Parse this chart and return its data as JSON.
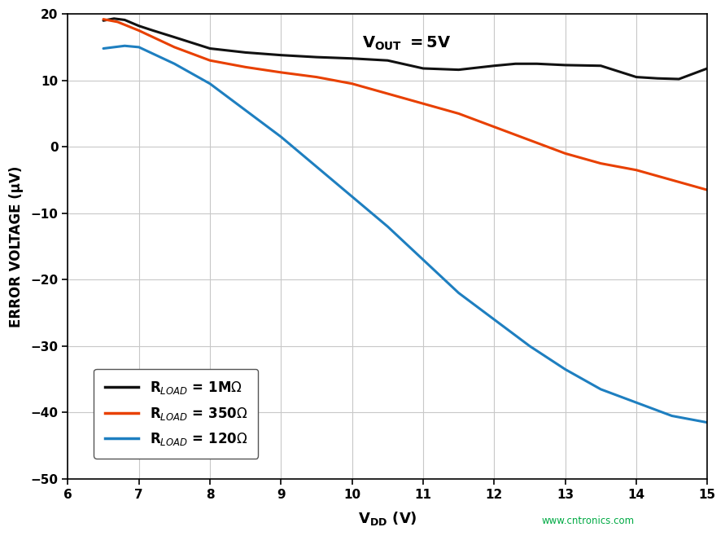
{
  "xlabel_parts": [
    "V",
    "DD",
    " ( V )"
  ],
  "ylabel": "ERROR VOLTAGE (μV)",
  "xlim": [
    6,
    15
  ],
  "ylim": [
    -50,
    20
  ],
  "xticks": [
    6,
    7,
    8,
    9,
    10,
    11,
    12,
    13,
    14,
    15
  ],
  "yticks": [
    -50,
    -40,
    -30,
    -20,
    -10,
    0,
    10,
    20
  ],
  "background_color": "#ffffff",
  "grid_color": "#c8c8c8",
  "watermark": "www.cntronics.com",
  "series": [
    {
      "label": "R$_{LOAD}$ = 1M$\\Omega$",
      "color": "#111111",
      "linewidth": 2.2,
      "x": [
        6.5,
        6.65,
        6.8,
        7.0,
        7.2,
        7.5,
        8.0,
        8.5,
        9.0,
        9.5,
        10.0,
        10.5,
        11.0,
        11.5,
        12.0,
        12.3,
        12.6,
        13.0,
        13.5,
        14.0,
        14.3,
        14.6,
        15.0
      ],
      "y": [
        19.0,
        19.3,
        19.1,
        18.2,
        17.5,
        16.5,
        14.8,
        14.2,
        13.8,
        13.5,
        13.3,
        13.0,
        11.8,
        11.6,
        12.2,
        12.5,
        12.5,
        12.3,
        12.2,
        10.5,
        10.3,
        10.2,
        11.8
      ]
    },
    {
      "label": "R$_{LOAD}$ = 350$\\Omega$",
      "color": "#e84000",
      "linewidth": 2.2,
      "x": [
        6.5,
        6.7,
        7.0,
        7.5,
        8.0,
        8.5,
        9.0,
        9.5,
        10.0,
        10.5,
        11.0,
        11.5,
        12.0,
        12.5,
        13.0,
        13.5,
        14.0,
        14.5,
        15.0
      ],
      "y": [
        19.2,
        18.8,
        17.5,
        15.0,
        13.0,
        12.0,
        11.2,
        10.5,
        9.5,
        8.0,
        6.5,
        5.0,
        3.0,
        1.0,
        -1.0,
        -2.5,
        -3.5,
        -5.0,
        -6.5
      ]
    },
    {
      "label": "R$_{LOAD}$ = 120$\\Omega$",
      "color": "#1e7fc0",
      "linewidth": 2.2,
      "x": [
        6.5,
        6.8,
        7.0,
        7.5,
        8.0,
        8.5,
        9.0,
        9.5,
        10.0,
        10.5,
        11.0,
        11.5,
        12.0,
        12.5,
        13.0,
        13.5,
        14.0,
        14.5,
        15.0
      ],
      "y": [
        14.8,
        15.2,
        15.0,
        12.5,
        9.5,
        5.5,
        1.5,
        -3.0,
        -7.5,
        -12.0,
        -17.0,
        -22.0,
        -26.0,
        -30.0,
        -33.5,
        -36.5,
        -38.5,
        -40.5,
        -41.5
      ]
    }
  ]
}
